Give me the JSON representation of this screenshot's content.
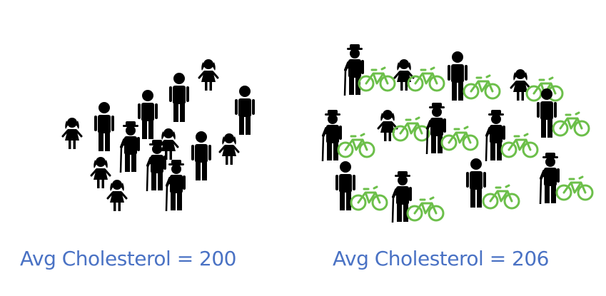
{
  "captions": {
    "left": "Avg Cholesterol = 200",
    "right": "Avg Cholesterol = 206"
  },
  "colors": {
    "figure": "#000000",
    "bicycle": "#6cbf4a",
    "caption": "#4a72c4"
  },
  "groups": {
    "left": {
      "description_icons": "person-icon",
      "people": [
        {
          "kind": "child-girl"
        },
        {
          "kind": "adult-man"
        },
        {
          "kind": "adult-man"
        },
        {
          "kind": "adult-man"
        },
        {
          "kind": "child-girl"
        },
        {
          "kind": "adult-man"
        },
        {
          "kind": "elder-with-cane"
        },
        {
          "kind": "child-girl"
        },
        {
          "kind": "elder-with-cane"
        },
        {
          "kind": "adult-man"
        },
        {
          "kind": "child-girl"
        },
        {
          "kind": "child-girl"
        },
        {
          "kind": "elder-with-cane"
        },
        {
          "kind": "child-girl"
        }
      ]
    },
    "right": {
      "people": [
        {
          "kind": "elder-with-cane",
          "bike": true
        },
        {
          "kind": "child-girl",
          "bike": true
        },
        {
          "kind": "adult-man",
          "bike": true
        },
        {
          "kind": "child-girl",
          "bike": true
        },
        {
          "kind": "elder-with-cane",
          "bike": true
        },
        {
          "kind": "child-girl",
          "bike": true
        },
        {
          "kind": "elder-with-cane",
          "bike": true
        },
        {
          "kind": "elder-with-cane",
          "bike": true
        },
        {
          "kind": "adult-man",
          "bike": true
        },
        {
          "kind": "adult-man",
          "bike": true
        },
        {
          "kind": "elder-with-cane",
          "bike": true
        },
        {
          "kind": "adult-man",
          "bike": true
        },
        {
          "kind": "elder-with-cane",
          "bike": true
        }
      ]
    }
  }
}
